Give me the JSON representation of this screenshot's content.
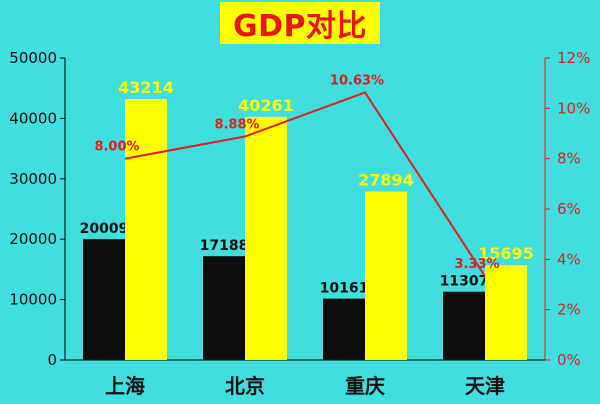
{
  "chart_data": {
    "type": "bar",
    "title": "GDP对比",
    "categories": [
      "上海",
      "北京",
      "重庆",
      "天津"
    ],
    "series": [
      {
        "values": [
          20009,
          17188,
          10161,
          11307
        ],
        "color": "#0d0d0d",
        "label_color": "#111111"
      },
      {
        "values": [
          43214,
          40261,
          27894,
          15695
        ],
        "color": "#ffff00",
        "label_color": "#ffff00"
      }
    ],
    "line_series": {
      "values": [
        8.0,
        8.88,
        10.63,
        3.33
      ],
      "labels": [
        "8.00%",
        "8.88%",
        "10.63%",
        "3.33%"
      ],
      "color": "#e02020",
      "axis": "right"
    },
    "left_axis": {
      "ylim": [
        0,
        50000
      ],
      "ticks": [
        "0",
        "10000",
        "20000",
        "30000",
        "40000",
        "50000"
      ]
    },
    "right_axis": {
      "ylim": [
        0,
        12
      ],
      "ticks": [
        "0%",
        "2%",
        "4%",
        "6%",
        "8%",
        "10%",
        "12%"
      ],
      "color": "#e02020"
    },
    "grid": false,
    "colors": {
      "background": "#40dede",
      "title_bg": "#ffff00",
      "title_text": "#e81515"
    }
  }
}
